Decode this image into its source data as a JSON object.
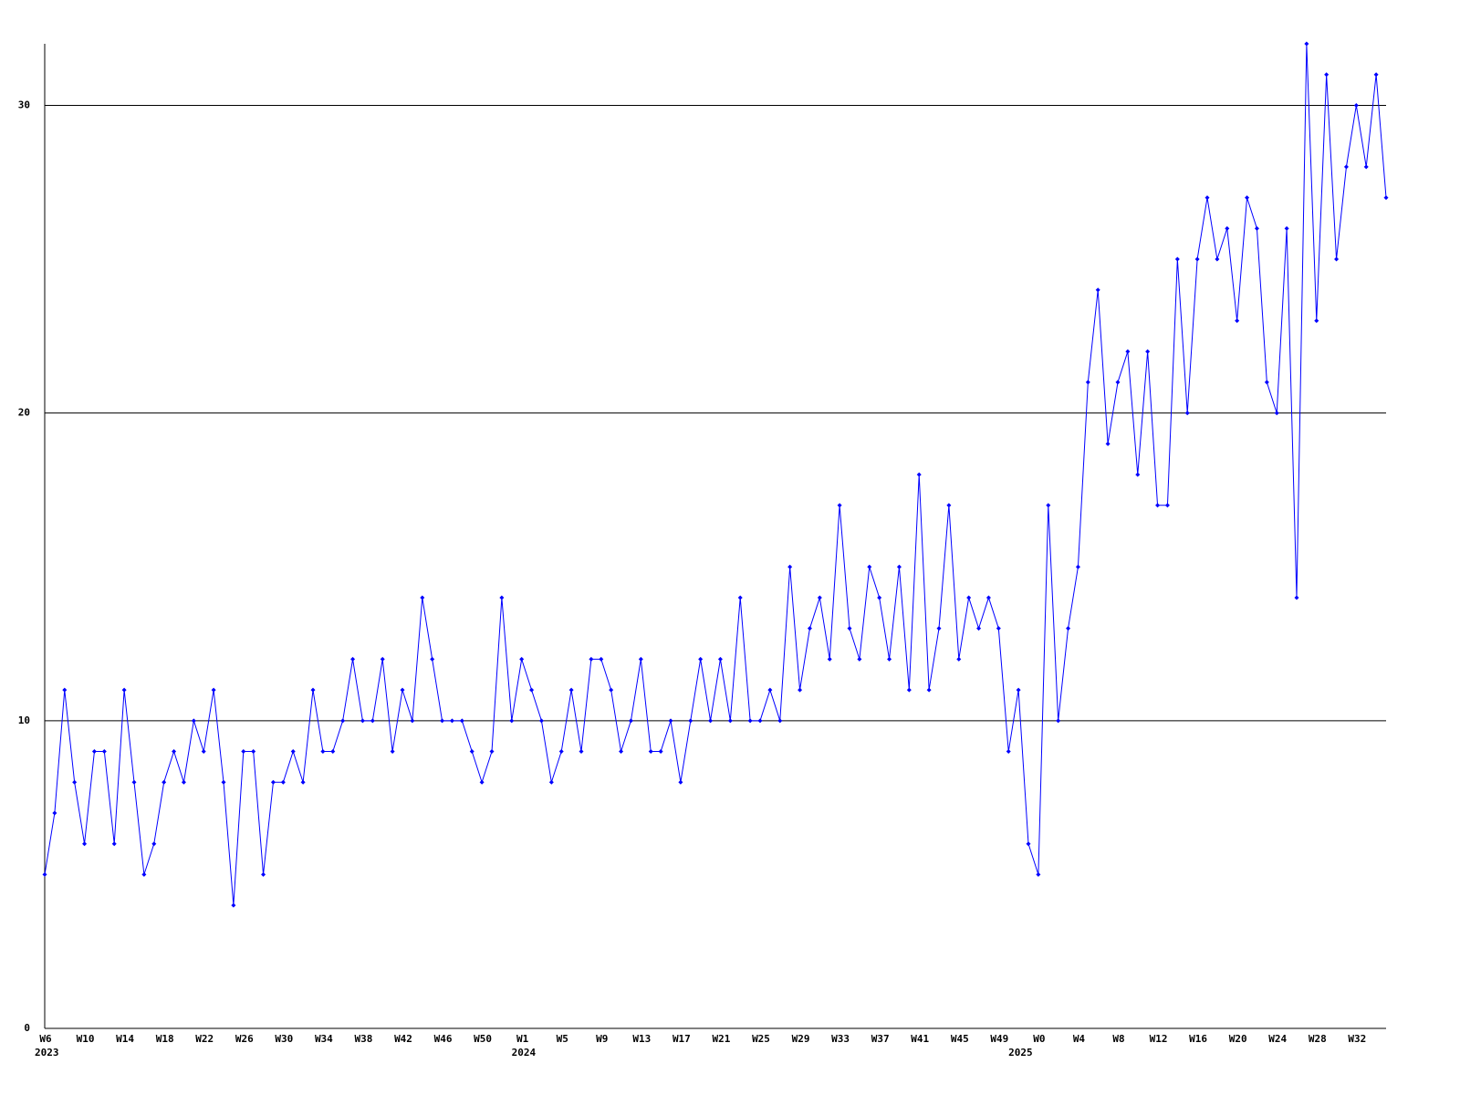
{
  "chart_data": {
    "type": "line",
    "categories": [
      "W6",
      null,
      null,
      null,
      "W10",
      null,
      null,
      null,
      "W14",
      null,
      null,
      null,
      "W18",
      null,
      null,
      null,
      "W22",
      null,
      null,
      null,
      "W26",
      null,
      null,
      null,
      "W30",
      null,
      null,
      null,
      "W34",
      null,
      null,
      null,
      "W38",
      null,
      null,
      null,
      "W42",
      null,
      null,
      null,
      "W46",
      null,
      null,
      null,
      "W50",
      null,
      null,
      null,
      "W1",
      null,
      null,
      null,
      "W5",
      null,
      null,
      null,
      "W9",
      null,
      null,
      null,
      "W13",
      null,
      null,
      null,
      "W17",
      null,
      null,
      null,
      "W21",
      null,
      null,
      null,
      "W25",
      null,
      null,
      null,
      "W29",
      null,
      null,
      null,
      "W33",
      null,
      null,
      null,
      "W37",
      null,
      null,
      null,
      "W41",
      null,
      null,
      null,
      "W45",
      null,
      null,
      null,
      "W49",
      null,
      null,
      null,
      "W0",
      null,
      null,
      null,
      "W4",
      null,
      null,
      null,
      "W8",
      null,
      null,
      null,
      "W12",
      null,
      null,
      null,
      "W16",
      null,
      null,
      null,
      "W20",
      null,
      null,
      null,
      "W24",
      null,
      null,
      null,
      "W28",
      null,
      null,
      null,
      "W32",
      null,
      null,
      null
    ],
    "year_labels": [
      "2023",
      null,
      null,
      null,
      null,
      null,
      null,
      null,
      null,
      null,
      null,
      null,
      null,
      null,
      null,
      null,
      null,
      null,
      null,
      null,
      null,
      null,
      null,
      null,
      null,
      null,
      null,
      null,
      null,
      null,
      null,
      null,
      null,
      null,
      null,
      null,
      null,
      null,
      null,
      null,
      null,
      null,
      null,
      null,
      null,
      null,
      null,
      null,
      "2024",
      null,
      null,
      null,
      null,
      null,
      null,
      null,
      null,
      null,
      null,
      null,
      null,
      null,
      null,
      null,
      null,
      null,
      null,
      null,
      null,
      null,
      null,
      null,
      null,
      null,
      null,
      null,
      null,
      null,
      null,
      null,
      null,
      null,
      null,
      null,
      null,
      null,
      null,
      null,
      null,
      null,
      null,
      null,
      null,
      null,
      null,
      null,
      null,
      null,
      "2025",
      null,
      null,
      null,
      null,
      null,
      null,
      null,
      null,
      null,
      null,
      null,
      null,
      null,
      null,
      null,
      null,
      null,
      null,
      null,
      null,
      null,
      null,
      null,
      null,
      null,
      null,
      null,
      null,
      null,
      null,
      null,
      null,
      null,
      null,
      null
    ],
    "series": [
      {
        "color": "#0000ff",
        "values": [
          5,
          7,
          11,
          8,
          6,
          9,
          9,
          6,
          11,
          8,
          5,
          6,
          8,
          9,
          8,
          10,
          9,
          11,
          8,
          4,
          9,
          9,
          5,
          8,
          8,
          9,
          8,
          11,
          9,
          9,
          10,
          12,
          10,
          10,
          12,
          9,
          11,
          10,
          14,
          12,
          10,
          10,
          10,
          9,
          8,
          9,
          14,
          10,
          12,
          11,
          10,
          8,
          9,
          11,
          9,
          12,
          12,
          11,
          9,
          10,
          12,
          9,
          9,
          10,
          8,
          10,
          12,
          10,
          12,
          10,
          14,
          10,
          10,
          11,
          10,
          15,
          11,
          13,
          14,
          12,
          17,
          13,
          12,
          15,
          14,
          12,
          15,
          11,
          18,
          11,
          13,
          17,
          12,
          14,
          13,
          14,
          13,
          9,
          11,
          6,
          5,
          17,
          10,
          13,
          15,
          21,
          24,
          19,
          21,
          22,
          18,
          22,
          17,
          17,
          25,
          20,
          25,
          27,
          25,
          26,
          23,
          27,
          26,
          21,
          20,
          26,
          14,
          32,
          23,
          31,
          25,
          28,
          30,
          28,
          31,
          27
        ]
      }
    ],
    "ylim": [
      0,
      32
    ],
    "yticks": [
      0,
      10,
      20,
      30
    ],
    "grid": true
  }
}
